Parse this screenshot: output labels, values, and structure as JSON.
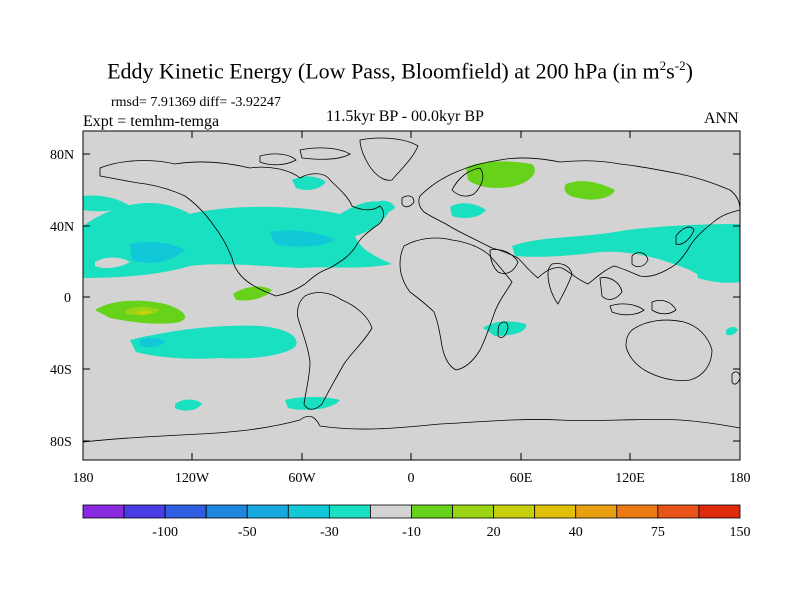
{
  "title": {
    "main": "Eddy Kinetic Energy (Low Pass, Bloomfield) at 200 hPa (in m",
    "sup1": "2",
    "s": "s",
    "sup2": "-2",
    "close": ")"
  },
  "stats": "rmsd= 7.91369 diff= -3.92247",
  "expt": "Expt = temhm-temga",
  "period": "11.5kyr BP - 00.0kyr BP",
  "season": "ANN",
  "map": {
    "lat_ticks": [
      "80N",
      "40N",
      "0",
      "40S",
      "80S"
    ],
    "lon_ticks": [
      "180",
      "120W",
      "60W",
      "0",
      "60E",
      "120E",
      "180"
    ],
    "background_color": "#d3d3d3",
    "coast_color": "#000000"
  },
  "colorbar": {
    "colors": [
      "#8a2be2",
      "#4b3de6",
      "#2f5fe0",
      "#1f86e0",
      "#18a8e0",
      "#10c8d8",
      "#18e0c0",
      "#d3d3d3",
      "#66d21a",
      "#9ad414",
      "#c8d00e",
      "#e0c008",
      "#e8a010",
      "#ec7a14",
      "#e85418",
      "#e02a0c"
    ],
    "labels": [
      "-100",
      "-50",
      "-30",
      "-10",
      "20",
      "40",
      "75",
      "150"
    ]
  },
  "colors": {
    "neg_light": "#18e0c0",
    "neg_mid": "#10c8d8",
    "neg_dark": "#18a8e0",
    "pos_light": "#66d21a",
    "pos_mid": "#9ad414",
    "pos_strong": "#c8d00e"
  }
}
